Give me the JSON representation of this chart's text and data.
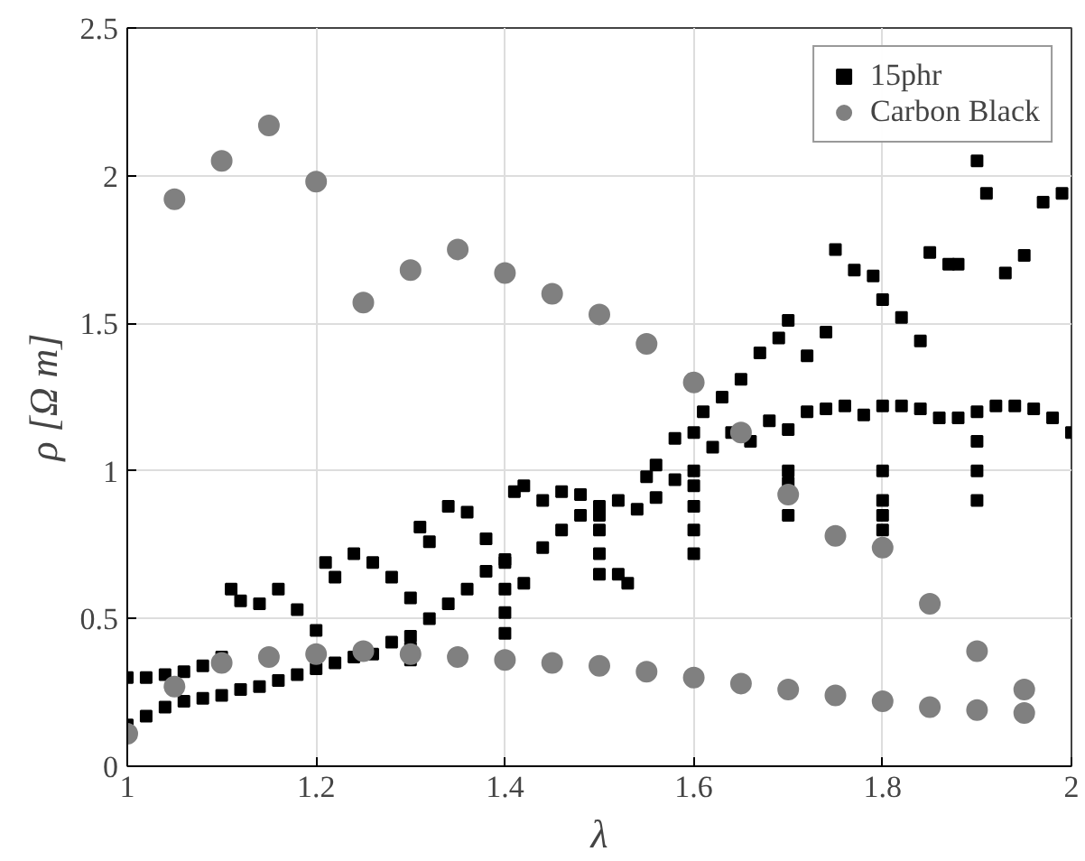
{
  "chart_data": {
    "type": "scatter",
    "xlabel": "λ",
    "ylabel": "ρ [Ω m]",
    "xlim": [
      1,
      2
    ],
    "ylim": [
      0,
      2.5
    ],
    "xticks": [
      1,
      1.2,
      1.4,
      1.6,
      1.8,
      2
    ],
    "yticks": [
      0,
      0.5,
      1,
      1.5,
      2,
      2.5
    ],
    "grid": true,
    "legend": "top right",
    "series": [
      {
        "name": "15phr",
        "color": "#000000",
        "marker": "square",
        "x": [
          1.0,
          1.02,
          1.04,
          1.06,
          1.08,
          1.1,
          1.12,
          1.14,
          1.16,
          1.18,
          1.2,
          1.22,
          1.24,
          1.26,
          1.28,
          1.3,
          1.32,
          1.34,
          1.36,
          1.38,
          1.4,
          1.42,
          1.44,
          1.46,
          1.48,
          1.5,
          1.52,
          1.54,
          1.56,
          1.58,
          1.6,
          1.62,
          1.64,
          1.66,
          1.68,
          1.7,
          1.72,
          1.74,
          1.76,
          1.78,
          1.8,
          1.82,
          1.84,
          1.86,
          1.88,
          1.9,
          1.92,
          1.94,
          1.96,
          1.98,
          2.0,
          1.0,
          1.02,
          1.04,
          1.06,
          1.08,
          1.1,
          1.11,
          1.12,
          1.14,
          1.16,
          1.18,
          1.2,
          1.21,
          1.22,
          1.24,
          1.26,
          1.28,
          1.3,
          1.31,
          1.32,
          1.34,
          1.36,
          1.38,
          1.4,
          1.41,
          1.42,
          1.44,
          1.46,
          1.48,
          1.5,
          1.52,
          1.53,
          1.55,
          1.56,
          1.58,
          1.6,
          1.61,
          1.63,
          1.65,
          1.67,
          1.69,
          1.7,
          1.72,
          1.74,
          1.75,
          1.77,
          1.79,
          1.8,
          1.82,
          1.84,
          1.85,
          1.87,
          1.88,
          1.9,
          1.91,
          1.93,
          1.95,
          1.97,
          1.99,
          1.3,
          1.3,
          1.4,
          1.4,
          1.4,
          1.5,
          1.5,
          1.5,
          1.6,
          1.6,
          1.6,
          1.6,
          1.7,
          1.7,
          1.7,
          1.8,
          1.8,
          1.8,
          1.8,
          1.9,
          1.9,
          1.9
        ],
        "values": [
          0.14,
          0.17,
          0.2,
          0.22,
          0.23,
          0.24,
          0.26,
          0.27,
          0.29,
          0.31,
          0.33,
          0.35,
          0.37,
          0.38,
          0.42,
          0.44,
          0.5,
          0.55,
          0.6,
          0.66,
          0.7,
          0.62,
          0.74,
          0.8,
          0.85,
          0.88,
          0.9,
          0.87,
          0.91,
          0.97,
          1.0,
          1.08,
          1.13,
          1.1,
          1.17,
          1.14,
          1.2,
          1.21,
          1.22,
          1.19,
          1.22,
          1.22,
          1.21,
          1.18,
          1.18,
          1.2,
          1.22,
          1.22,
          1.21,
          1.18,
          1.13,
          0.3,
          0.3,
          0.31,
          0.32,
          0.34,
          0.37,
          0.6,
          0.56,
          0.55,
          0.6,
          0.53,
          0.46,
          0.69,
          0.64,
          0.72,
          0.69,
          0.64,
          0.57,
          0.81,
          0.76,
          0.88,
          0.86,
          0.77,
          0.69,
          0.93,
          0.95,
          0.9,
          0.93,
          0.92,
          0.85,
          0.65,
          0.62,
          0.98,
          1.02,
          1.11,
          1.13,
          1.2,
          1.25,
          1.31,
          1.4,
          1.45,
          1.51,
          1.39,
          1.47,
          1.75,
          1.68,
          1.66,
          1.58,
          1.52,
          1.44,
          1.74,
          1.7,
          1.7,
          2.05,
          1.94,
          1.67,
          1.73,
          1.91,
          1.94,
          0.4,
          0.36,
          0.6,
          0.52,
          0.45,
          0.8,
          0.72,
          0.65,
          0.95,
          0.88,
          0.8,
          0.72,
          1.0,
          0.96,
          0.85,
          1.0,
          0.9,
          0.8,
          0.85,
          1.1,
          1.0,
          0.9
        ]
      },
      {
        "name": "Carbon Black",
        "color": "#808080",
        "marker": "circle",
        "x": [
          1.05,
          1.1,
          1.15,
          1.2,
          1.25,
          1.3,
          1.35,
          1.4,
          1.45,
          1.5,
          1.55,
          1.6,
          1.65,
          1.7,
          1.75,
          1.8,
          1.85,
          1.9,
          1.95,
          1.0,
          1.05,
          1.1,
          1.15,
          1.2,
          1.25,
          1.3,
          1.35,
          1.4,
          1.45,
          1.5,
          1.55,
          1.6,
          1.65,
          1.7,
          1.75,
          1.8,
          1.85,
          1.9,
          1.95
        ],
        "values": [
          1.92,
          2.05,
          2.17,
          1.98,
          1.57,
          1.68,
          1.75,
          1.67,
          1.6,
          1.53,
          1.43,
          1.3,
          1.13,
          0.92,
          0.78,
          0.74,
          0.55,
          0.39,
          0.26,
          0.11,
          0.27,
          0.35,
          0.37,
          0.38,
          0.39,
          0.38,
          0.37,
          0.36,
          0.35,
          0.34,
          0.32,
          0.3,
          0.28,
          0.26,
          0.24,
          0.22,
          0.2,
          0.19,
          0.18
        ]
      }
    ]
  }
}
